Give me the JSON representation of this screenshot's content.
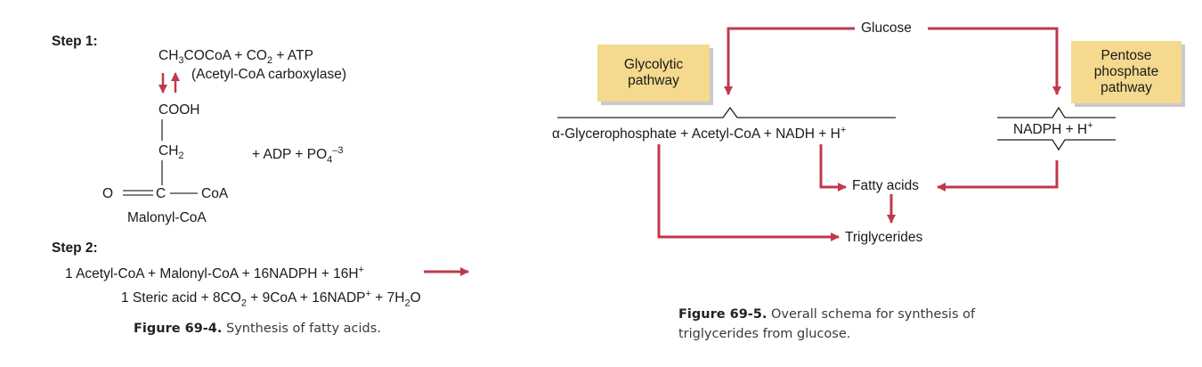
{
  "fig4": {
    "step1": {
      "label": "Step 1:",
      "reactant_a": "CH",
      "reactant_sub1": "3",
      "reactant_b": "COCoA + CO",
      "reactant_sub2": "2",
      "reactant_c": " + ATP",
      "enzyme": "(Acetyl-CoA carboxylase)",
      "cooh": "COOH",
      "ch": "CH",
      "ch_sub": "2",
      "prod_a": "+ ADP + PO",
      "prod_sub": "4",
      "prod_sup": "–3",
      "o": "O",
      "c": "C",
      "coa": "CoA",
      "name": "Malonyl-CoA"
    },
    "step2": {
      "label": "Step 2:",
      "line1_a": "1 Acetyl-CoA + Malonyl-CoA + 16NADPH + 16H",
      "line1_sup": "+",
      "line2_a": "1 Steric acid + 8CO",
      "line2_sub1": "2",
      "line2_b": " + 9CoA + 16NADP",
      "line2_sup": "+",
      "line2_c": " + 7H",
      "line2_sub2": "2",
      "line2_d": "O"
    },
    "caption_num": "Figure 69-4.",
    "caption_text": " Synthesis of fatty acids."
  },
  "fig5": {
    "glucose": "Glucose",
    "glycolytic": "Glycolytic\npathway",
    "pentose": "Pentose\nphosphate\npathway",
    "main_line": "α-Glycerophosphate + Acetyl-CoA + NADH + H",
    "main_sup": "+",
    "nadph": "NADPH + H",
    "nadph_sup": "+",
    "fatty_acids": "Fatty acids",
    "triglycerides": "Triglycerides",
    "caption_num": "Figure 69-5.",
    "caption_text1": " Overall schema for synthesis of",
    "caption_text2": "triglycerides from glucose."
  },
  "colors": {
    "arrow": "#c0394b",
    "box": "#f4d98f",
    "text": "#1a1a1a"
  }
}
